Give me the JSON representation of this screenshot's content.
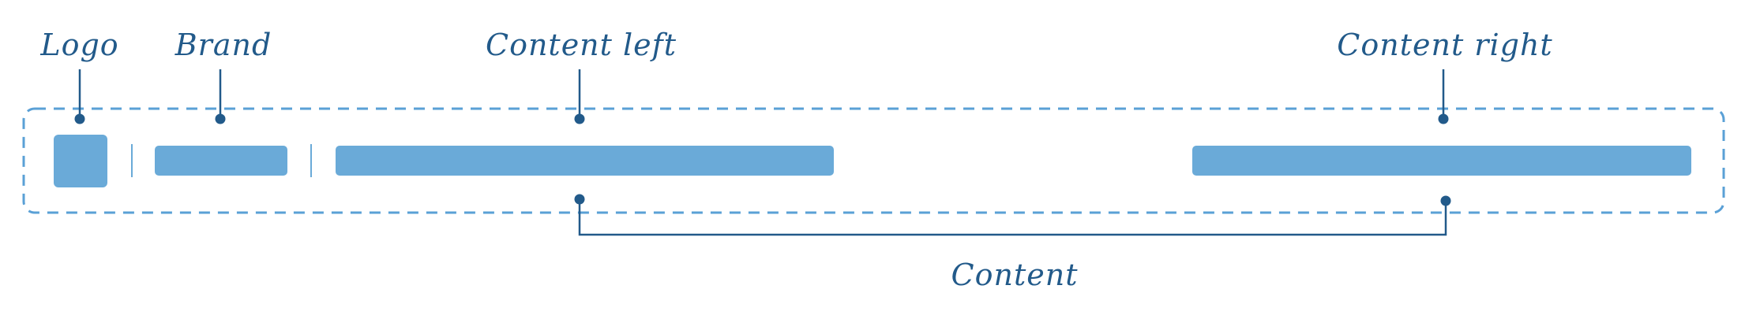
{
  "colors": {
    "block": "#6aaad8",
    "ink": "#225a8a",
    "dashed": "#5aa0d6",
    "background": "#ffffff"
  },
  "labels": {
    "logo": "Logo",
    "brand": "Brand",
    "content_left": "Content left",
    "content_right": "Content right",
    "content": "Content"
  }
}
